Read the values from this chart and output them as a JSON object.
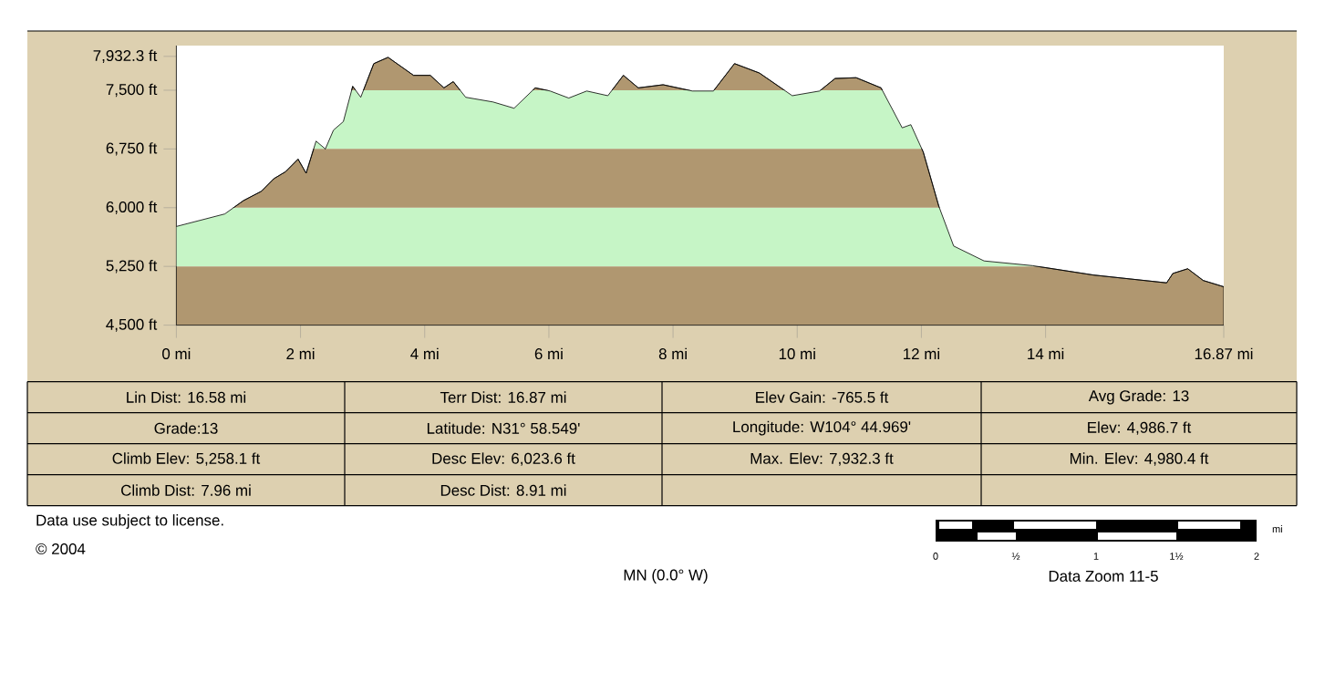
{
  "chart_data": {
    "type": "area",
    "color": "#b09770",
    "x": [
      0,
      0.39,
      0.78,
      1.08,
      1.37,
      1.57,
      1.76,
      1.96,
      2.09,
      2.25,
      2.4,
      2.53,
      2.69,
      2.84,
      2.97,
      3.18,
      3.41,
      3.82,
      4.09,
      4.31,
      4.46,
      4.66,
      5.1,
      5.44,
      5.78,
      6.02,
      6.32,
      6.61,
      6.95,
      7.2,
      7.44,
      7.84,
      8.31,
      8.65,
      8.99,
      9.39,
      9.92,
      10.36,
      10.61,
      10.95,
      11.35,
      11.69,
      11.83,
      12.03,
      12.28,
      12.52,
      13.01,
      13.79,
      14.77,
      15.95,
      16.05,
      16.29,
      16.54,
      16.87
    ],
    "values": [
      5760,
      5840,
      5920,
      6090,
      6210,
      6370,
      6460,
      6620,
      6440,
      6850,
      6750,
      6990,
      7100,
      7550,
      7410,
      7840,
      7920,
      7690,
      7690,
      7530,
      7610,
      7410,
      7350,
      7270,
      7530,
      7490,
      7400,
      7490,
      7430,
      7690,
      7530,
      7570,
      7490,
      7490,
      7840,
      7720,
      7430,
      7490,
      7650,
      7660,
      7530,
      7020,
      7060,
      6710,
      6020,
      5510,
      5320,
      5260,
      5140,
      5040,
      5160,
      5220,
      5070,
      4990
    ],
    "xlim": [
      0,
      16.87
    ],
    "ylim": [
      4500,
      8070
    ],
    "xticks": [
      {
        "value": 0,
        "label": "0 mi"
      },
      {
        "value": 2,
        "label": "2 mi"
      },
      {
        "value": 4,
        "label": "4 mi"
      },
      {
        "value": 6,
        "label": "6 mi"
      },
      {
        "value": 8,
        "label": "8 mi"
      },
      {
        "value": 10,
        "label": "10 mi"
      },
      {
        "value": 12,
        "label": "12 mi"
      },
      {
        "value": 14,
        "label": "14 mi"
      },
      {
        "value": 16.87,
        "label": "16.87 mi"
      }
    ],
    "yticks": [
      {
        "value": 4500,
        "label": "4,500 ft"
      },
      {
        "value": 5250,
        "label": "5,250 ft"
      },
      {
        "value": 6000,
        "label": "6,000 ft"
      },
      {
        "value": 6750,
        "label": "6,750 ft"
      },
      {
        "value": 7500,
        "label": "7,500 ft"
      },
      {
        "value": 7932.3,
        "label": "7,932.3 ft"
      }
    ],
    "bands": [
      {
        "axis": "y",
        "from": 5250,
        "to": 6000,
        "color": "#c6f5c6"
      },
      {
        "axis": "y",
        "from": 6750,
        "to": 7500,
        "color": "#c6f5c6"
      }
    ],
    "annotations": [
      "Lin Dist: 16.58 mi",
      "Terr Dist: 16.87 mi",
      "Elev Gain: -765.5 ft",
      "Avg Grade: 13",
      "Grade:13",
      "Latitude: N31° 58.549'",
      "Longitude: W104° 44.969'",
      "Elev: 4,986.7 ft",
      "Climb Elev: 5,258.1 ft",
      "Desc Elev: 6,023.6 ft",
      "Max. Elev: 7,932.3 ft",
      "Min. Elev: 4,980.4 ft",
      "Climb Dist: 7.96 mi",
      "Desc Dist: 8.91 mi",
      "Data use subject to license.",
      "© 2004",
      "MN (0.0° W)",
      "0",
      "½",
      "1",
      "1½",
      "2",
      "mi",
      "Data Zoom 11-5"
    ]
  }
}
